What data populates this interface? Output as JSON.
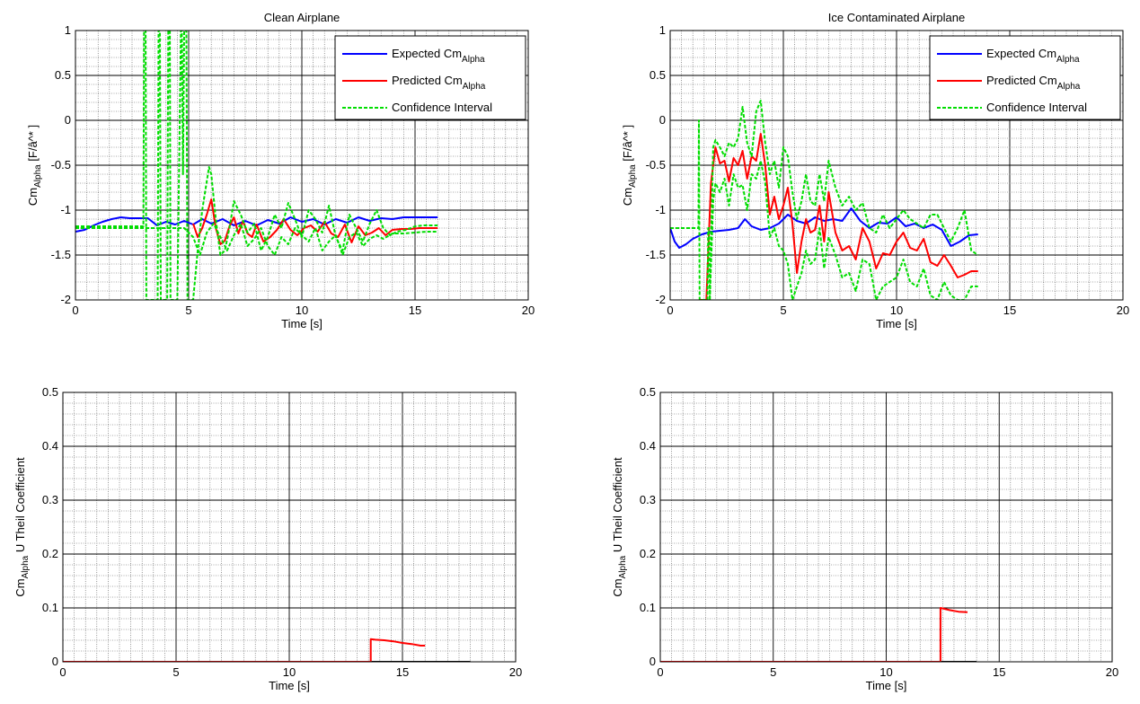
{
  "chart_data": [
    {
      "type": "line",
      "title": "Clean Airplane",
      "xlabel": "Time [s]",
      "ylabel_main": "Cm",
      "ylabel_sub": "Alpha",
      "ylabel_unit": " [F/â^* ]",
      "xlim": [
        0,
        20
      ],
      "ylim": [
        -2,
        1
      ],
      "xticks": [
        "0",
        "5",
        "10",
        "15",
        "20"
      ],
      "yticks": [
        "-2",
        "-1.5",
        "-1",
        "-0.5",
        "0",
        "0.5",
        "1"
      ],
      "grid": true,
      "legend_position": "top-right",
      "legend": [
        {
          "main": "Expected Cm",
          "sub": "Alpha",
          "color": "#0000ff",
          "dash": "solid"
        },
        {
          "main": "Predicted Cm",
          "sub": "Alpha",
          "color": "#ff0000",
          "dash": "solid"
        },
        {
          "main": "Confidence Interval",
          "sub": "",
          "color": "#00dd00",
          "dash": "dashed"
        }
      ],
      "series": [
        {
          "color": "#0000ff",
          "dash": "solid",
          "x": [
            0,
            0.4,
            0.8,
            1.2,
            1.6,
            2.0,
            2.4,
            2.8,
            3.2,
            3.6,
            4.0,
            4.4,
            4.8,
            5.2,
            5.6,
            6.0,
            6.5,
            7.0,
            7.5,
            8.0,
            8.5,
            9.0,
            9.5,
            10.0,
            10.5,
            11.0,
            11.5,
            12.0,
            12.5,
            13.0,
            13.5,
            14.0,
            14.5,
            15.0,
            15.5,
            16.0
          ],
          "y": [
            -1.24,
            -1.22,
            -1.17,
            -1.13,
            -1.1,
            -1.08,
            -1.09,
            -1.09,
            -1.09,
            -1.17,
            -1.13,
            -1.16,
            -1.12,
            -1.16,
            -1.1,
            -1.15,
            -1.1,
            -1.17,
            -1.12,
            -1.17,
            -1.11,
            -1.15,
            -1.08,
            -1.13,
            -1.1,
            -1.16,
            -1.1,
            -1.14,
            -1.08,
            -1.12,
            -1.09,
            -1.1,
            -1.08,
            -1.08,
            -1.08,
            -1.08
          ]
        },
        {
          "color": "#ff0000",
          "dash": "solid",
          "x": [
            5.2,
            5.4,
            5.6,
            5.8,
            6.0,
            6.2,
            6.4,
            6.6,
            6.8,
            7.0,
            7.2,
            7.4,
            7.6,
            7.8,
            8.0,
            8.3,
            8.6,
            8.9,
            9.2,
            9.5,
            9.8,
            10.1,
            10.4,
            10.7,
            11.0,
            11.3,
            11.6,
            11.9,
            12.2,
            12.5,
            12.8,
            13.1,
            13.4,
            13.7,
            14.0,
            14.4,
            14.8,
            15.2,
            15.6,
            16.0
          ],
          "y": [
            -1.15,
            -1.3,
            -1.2,
            -1.05,
            -0.88,
            -1.2,
            -1.38,
            -1.34,
            -1.18,
            -1.08,
            -1.26,
            -1.12,
            -1.26,
            -1.3,
            -1.16,
            -1.35,
            -1.3,
            -1.22,
            -1.1,
            -1.22,
            -1.28,
            -1.2,
            -1.17,
            -1.24,
            -1.13,
            -1.26,
            -1.3,
            -1.16,
            -1.36,
            -1.18,
            -1.28,
            -1.25,
            -1.2,
            -1.28,
            -1.22,
            -1.21,
            -1.21,
            -1.2,
            -1.2,
            -1.2
          ]
        },
        {
          "color": "#00dd00",
          "dash": "dashed",
          "x": [
            0,
            3.0,
            3.03,
            3.06,
            3.1,
            3.13,
            3.3,
            3.63,
            3.67,
            3.7,
            3.73,
            3.77,
            3.8,
            4.05,
            4.1,
            4.13,
            4.17,
            4.2,
            4.5,
            4.66,
            4.7,
            4.75,
            4.8,
            4.9,
            4.95,
            5.0,
            5.1,
            5.2,
            5.4,
            5.6,
            5.9,
            6.0,
            6.2,
            6.4,
            6.6,
            6.8,
            7.0,
            7.3,
            7.6,
            7.9,
            8.2,
            8.5,
            8.8,
            9.1,
            9.4,
            9.7,
            10.0,
            10.3,
            10.6,
            10.9,
            11.2,
            11.5,
            11.8,
            12.1,
            12.4,
            12.7,
            13.0,
            13.3,
            13.6,
            13.9,
            14.2,
            14.6,
            15.0,
            15.4,
            15.8,
            16.0
          ],
          "y": [
            -1.18,
            -1.18,
            1.0,
            1.0,
            1.0,
            -2.0,
            -2.0,
            -2.0,
            1.0,
            1.0,
            1.0,
            -2.0,
            -2.0,
            -2.0,
            1.0,
            1.0,
            1.0,
            -2.0,
            -2.0,
            1.0,
            1.0,
            -0.6,
            1.0,
            1.0,
            -2.0,
            -2.0,
            -2.0,
            -2.0,
            -1.45,
            -1.0,
            -0.52,
            -0.6,
            -1.1,
            -1.5,
            -1.45,
            -1.2,
            -0.9,
            -1.05,
            -1.25,
            -1.15,
            -1.45,
            -1.3,
            -1.05,
            -1.2,
            -0.92,
            -1.1,
            -1.3,
            -1.0,
            -1.1,
            -1.25,
            -0.95,
            -1.3,
            -1.45,
            -1.05,
            -1.2,
            -1.35,
            -1.15,
            -1.0,
            -1.2,
            -1.28,
            -1.24,
            -1.22,
            -1.18,
            -1.17,
            -1.17,
            -1.17
          ]
        },
        {
          "color": "#00dd00",
          "dash": "dashed",
          "x": [
            0,
            3.0,
            3.3,
            3.6,
            4.0,
            4.4,
            4.8,
            5.2,
            5.5,
            5.8,
            6.1,
            6.4,
            6.7,
            7.0,
            7.3,
            7.6,
            7.9,
            8.2,
            8.5,
            8.8,
            9.1,
            9.4,
            9.7,
            10.0,
            10.3,
            10.6,
            10.9,
            11.2,
            11.5,
            11.8,
            12.1,
            12.4,
            12.7,
            13.0,
            13.3,
            13.6,
            14.0,
            14.5,
            15.0,
            15.5,
            16.0
          ],
          "y": [
            -1.2,
            -1.2,
            -1.2,
            -1.2,
            -1.2,
            -1.2,
            -1.2,
            -1.3,
            -1.5,
            -1.25,
            -1.15,
            -1.3,
            -1.45,
            -1.28,
            -1.15,
            -1.4,
            -1.32,
            -1.2,
            -1.4,
            -1.5,
            -1.3,
            -1.38,
            -1.2,
            -1.28,
            -1.35,
            -1.2,
            -1.45,
            -1.35,
            -1.28,
            -1.5,
            -1.3,
            -1.25,
            -1.4,
            -1.32,
            -1.28,
            -1.32,
            -1.26,
            -1.26,
            -1.25,
            -1.24,
            -1.24
          ]
        }
      ]
    },
    {
      "type": "line",
      "title": "Ice Contaminated Airplane",
      "xlabel": "Time [s]",
      "ylabel_main": "Cm",
      "ylabel_sub": "Alpha",
      "ylabel_unit": " [F/â^* ]",
      "xlim": [
        0,
        20
      ],
      "ylim": [
        -2,
        1
      ],
      "xticks": [
        "0",
        "5",
        "10",
        "15",
        "20"
      ],
      "yticks": [
        "-2",
        "-1.5",
        "-1",
        "-0.5",
        "0",
        "0.5",
        "1"
      ],
      "grid": true,
      "legend_position": "top-right",
      "legend": [
        {
          "main": "Expected Cm",
          "sub": "Alpha",
          "color": "#0000ff",
          "dash": "solid"
        },
        {
          "main": "Predicted Cm",
          "sub": "Alpha",
          "color": "#ff0000",
          "dash": "solid"
        },
        {
          "main": "Confidence Interval",
          "sub": "",
          "color": "#00dd00",
          "dash": "dashed"
        }
      ],
      "series": [
        {
          "color": "#0000ff",
          "dash": "solid",
          "x": [
            0,
            0.2,
            0.4,
            0.7,
            1.0,
            1.4,
            1.8,
            2.2,
            2.6,
            3.0,
            3.3,
            3.6,
            4.0,
            4.4,
            4.8,
            5.2,
            5.6,
            6.0,
            6.4,
            6.8,
            7.2,
            7.6,
            8.0,
            8.4,
            8.8,
            9.2,
            9.6,
            10.0,
            10.4,
            10.8,
            11.2,
            11.6,
            12.0,
            12.4,
            12.8,
            13.2,
            13.6
          ],
          "y": [
            -1.2,
            -1.35,
            -1.42,
            -1.38,
            -1.32,
            -1.27,
            -1.24,
            -1.23,
            -1.22,
            -1.2,
            -1.1,
            -1.18,
            -1.22,
            -1.2,
            -1.15,
            -1.05,
            -1.12,
            -1.15,
            -1.08,
            -1.12,
            -1.1,
            -1.12,
            -0.98,
            -1.12,
            -1.2,
            -1.14,
            -1.15,
            -1.08,
            -1.18,
            -1.15,
            -1.2,
            -1.16,
            -1.22,
            -1.4,
            -1.35,
            -1.28,
            -1.27
          ]
        },
        {
          "color": "#ff0000",
          "dash": "solid",
          "x": [
            1.3,
            1.4,
            1.6,
            1.8,
            2.0,
            2.2,
            2.4,
            2.6,
            2.8,
            3.0,
            3.2,
            3.4,
            3.6,
            3.8,
            4.0,
            4.2,
            4.4,
            4.6,
            4.8,
            5.0,
            5.2,
            5.4,
            5.6,
            5.8,
            6.0,
            6.2,
            6.4,
            6.6,
            6.8,
            7.0,
            7.3,
            7.6,
            7.9,
            8.2,
            8.5,
            8.8,
            9.1,
            9.4,
            9.7,
            10.0,
            10.3,
            10.6,
            10.9,
            11.2,
            11.5,
            11.8,
            12.1,
            12.4,
            12.7,
            13.0,
            13.3,
            13.6
          ],
          "y": [
            -2.0,
            -2.0,
            -2.0,
            -0.7,
            -0.3,
            -0.48,
            -0.45,
            -0.68,
            -0.42,
            -0.5,
            -0.34,
            -0.65,
            -0.4,
            -0.45,
            -0.15,
            -0.5,
            -1.05,
            -0.85,
            -1.1,
            -0.95,
            -0.75,
            -1.15,
            -1.7,
            -1.35,
            -1.1,
            -1.25,
            -1.22,
            -0.95,
            -1.35,
            -0.8,
            -1.25,
            -1.45,
            -1.4,
            -1.55,
            -1.2,
            -1.35,
            -1.65,
            -1.48,
            -1.5,
            -1.35,
            -1.25,
            -1.42,
            -1.45,
            -1.32,
            -1.58,
            -1.62,
            -1.5,
            -1.62,
            -1.75,
            -1.72,
            -1.68,
            -1.68
          ]
        },
        {
          "color": "#00dd00",
          "dash": "dashed",
          "x": [
            0,
            1.25,
            1.27,
            1.3,
            1.33,
            1.5,
            1.65,
            1.68,
            1.72,
            1.75,
            1.9,
            2.0,
            2.2,
            2.4,
            2.6,
            2.8,
            3.0,
            3.2,
            3.4,
            3.6,
            3.8,
            4.0,
            4.2,
            4.4,
            4.6,
            4.8,
            5.0,
            5.2,
            5.4,
            5.6,
            5.8,
            6.0,
            6.2,
            6.4,
            6.6,
            6.8,
            7.0,
            7.3,
            7.6,
            7.9,
            8.2,
            8.5,
            8.8,
            9.1,
            9.4,
            9.7,
            10.0,
            10.3,
            10.6,
            10.9,
            11.2,
            11.5,
            11.8,
            12.1,
            12.4,
            12.7,
            13.0,
            13.3,
            13.6
          ],
          "y": [
            -1.2,
            -1.2,
            0.0,
            -2.0,
            -2.0,
            -2.0,
            -2.0,
            -1.2,
            -1.2,
            -2.0,
            -0.3,
            -0.22,
            -0.3,
            -0.4,
            -0.25,
            -0.3,
            -0.2,
            0.15,
            -0.25,
            -0.4,
            0.1,
            0.22,
            -0.25,
            -0.6,
            -0.45,
            -0.75,
            -0.3,
            -0.4,
            -0.8,
            -1.1,
            -0.9,
            -0.6,
            -0.9,
            -0.95,
            -0.6,
            -0.9,
            -0.45,
            -0.75,
            -0.95,
            -0.85,
            -1.0,
            -0.92,
            -1.2,
            -1.25,
            -1.05,
            -1.2,
            -1.1,
            -1.0,
            -1.1,
            -1.15,
            -1.2,
            -1.05,
            -1.05,
            -1.2,
            -1.35,
            -1.2,
            -1.0,
            -1.45,
            -1.5
          ]
        },
        {
          "color": "#00dd00",
          "dash": "dashed",
          "x": [
            1.75,
            1.9,
            2.0,
            2.2,
            2.4,
            2.6,
            2.8,
            3.0,
            3.2,
            3.4,
            3.6,
            3.8,
            4.0,
            4.2,
            4.4,
            4.6,
            4.8,
            5.0,
            5.2,
            5.4,
            5.6,
            5.8,
            6.0,
            6.2,
            6.4,
            6.6,
            6.8,
            7.0,
            7.3,
            7.6,
            7.9,
            8.2,
            8.5,
            8.8,
            9.1,
            9.4,
            9.7,
            10.0,
            10.3,
            10.6,
            10.9,
            11.2,
            11.5,
            11.8,
            12.1,
            12.4,
            12.7,
            13.0,
            13.3,
            13.6
          ],
          "y": [
            -2.0,
            -0.9,
            -0.7,
            -0.8,
            -0.65,
            -0.95,
            -0.6,
            -0.75,
            -0.72,
            -1.0,
            -0.6,
            -0.65,
            -0.45,
            -0.7,
            -1.3,
            -1.2,
            -1.4,
            -1.45,
            -1.6,
            -2.0,
            -1.85,
            -1.7,
            -1.45,
            -1.6,
            -1.55,
            -1.2,
            -1.65,
            -1.3,
            -1.5,
            -1.75,
            -1.7,
            -1.9,
            -1.55,
            -1.6,
            -2.0,
            -1.85,
            -1.8,
            -1.75,
            -1.55,
            -1.8,
            -1.85,
            -1.65,
            -1.95,
            -2.0,
            -1.8,
            -1.95,
            -2.0,
            -2.0,
            -1.85,
            -1.85
          ]
        }
      ]
    },
    {
      "type": "line",
      "title": "",
      "xlabel": "Time [s]",
      "ylabel_main": "Cm",
      "ylabel_sub": "Alpha",
      "ylabel_unit": " U Theil Coefficient",
      "xlim": [
        0,
        20
      ],
      "ylim": [
        0,
        0.5
      ],
      "xticks": [
        "0",
        "5",
        "10",
        "15",
        "20"
      ],
      "yticks": [
        "0",
        "0.1",
        "0.2",
        "0.3",
        "0.4",
        "0.5"
      ],
      "grid": true,
      "series": [
        {
          "color": "#000000",
          "dash": "solid",
          "x": [
            0,
            18
          ],
          "y": [
            0,
            0
          ]
        },
        {
          "color": "#ff0000",
          "dash": "solid",
          "x": [
            0,
            13.6,
            13.6,
            13.8,
            14.2,
            14.6,
            15.0,
            15.4,
            15.8,
            16.0
          ],
          "y": [
            0,
            0,
            0.042,
            0.041,
            0.04,
            0.038,
            0.035,
            0.033,
            0.03,
            0.03
          ]
        }
      ]
    },
    {
      "type": "line",
      "title": "",
      "xlabel": "Time [s]",
      "ylabel_main": "Cm",
      "ylabel_sub": "Alpha",
      "ylabel_unit": " U Theil Coefficient",
      "xlim": [
        0,
        20
      ],
      "ylim": [
        0,
        0.5
      ],
      "xticks": [
        "0",
        "5",
        "10",
        "15",
        "20"
      ],
      "yticks": [
        "0",
        "0.1",
        "0.2",
        "0.3",
        "0.4",
        "0.5"
      ],
      "grid": true,
      "series": [
        {
          "color": "#000000",
          "dash": "solid",
          "x": [
            0,
            14
          ],
          "y": [
            0,
            0
          ]
        },
        {
          "color": "#ff0000",
          "dash": "solid",
          "x": [
            0,
            12.4,
            12.4,
            12.8,
            13.2,
            13.6
          ],
          "y": [
            0,
            0,
            0.1,
            0.096,
            0.093,
            0.092
          ]
        }
      ]
    }
  ]
}
